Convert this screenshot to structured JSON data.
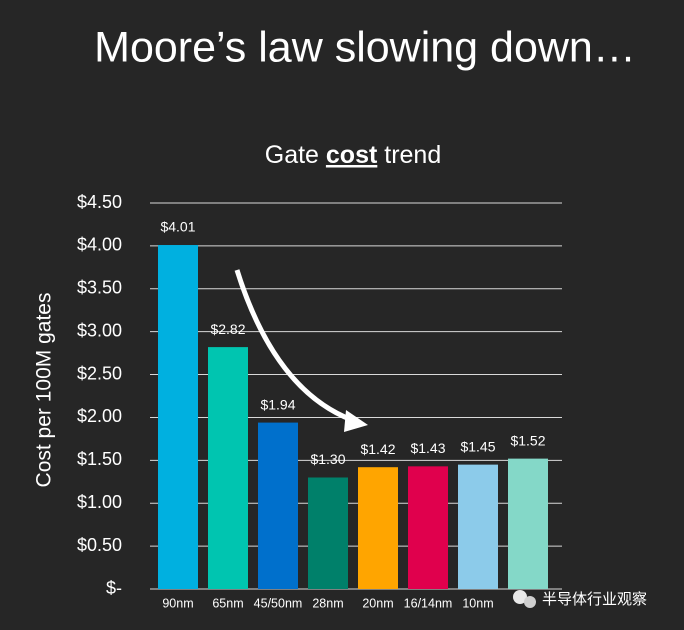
{
  "slide_title": "Moore’s law slowing down…",
  "watermark": "半导体行业观察",
  "chart_data": {
    "type": "bar",
    "title": [
      "Gate ",
      "cost",
      " trend"
    ],
    "y_label": "Cost per 100M gates",
    "categories": [
      "90nm",
      "65nm",
      "45/50nm",
      "28nm",
      "20nm",
      "16/14nm",
      "10nm",
      null
    ],
    "values": [
      4.01,
      2.82,
      1.94,
      1.3,
      1.42,
      1.43,
      1.45,
      1.52
    ],
    "value_labels": [
      "$4.01",
      "$2.82",
      "$1.94",
      "$1.30",
      "$1.42",
      "$1.43",
      "$1.45",
      "$1.52"
    ],
    "colors": [
      "#00b0e0",
      "#00c5b0",
      "#0070cc",
      "#00806a",
      "#ffa500",
      "#e0004d",
      "#8ccbea",
      "#84d8c8"
    ],
    "ylim": [
      0,
      4.5
    ],
    "yticks": [
      {
        "value": 0,
        "label": "$-"
      },
      {
        "value": 0.5,
        "label": "$0.50"
      },
      {
        "value": 1.0,
        "label": "$1.00"
      },
      {
        "value": 1.5,
        "label": "$1.50"
      },
      {
        "value": 2.0,
        "label": "$2.00"
      },
      {
        "value": 2.5,
        "label": "$2.50"
      },
      {
        "value": 3.0,
        "label": "$3.00"
      },
      {
        "value": 3.5,
        "label": "$3.50"
      },
      {
        "value": 4.0,
        "label": "$4.00"
      },
      {
        "value": 4.5,
        "label": "$4.50"
      }
    ],
    "grid": true
  }
}
